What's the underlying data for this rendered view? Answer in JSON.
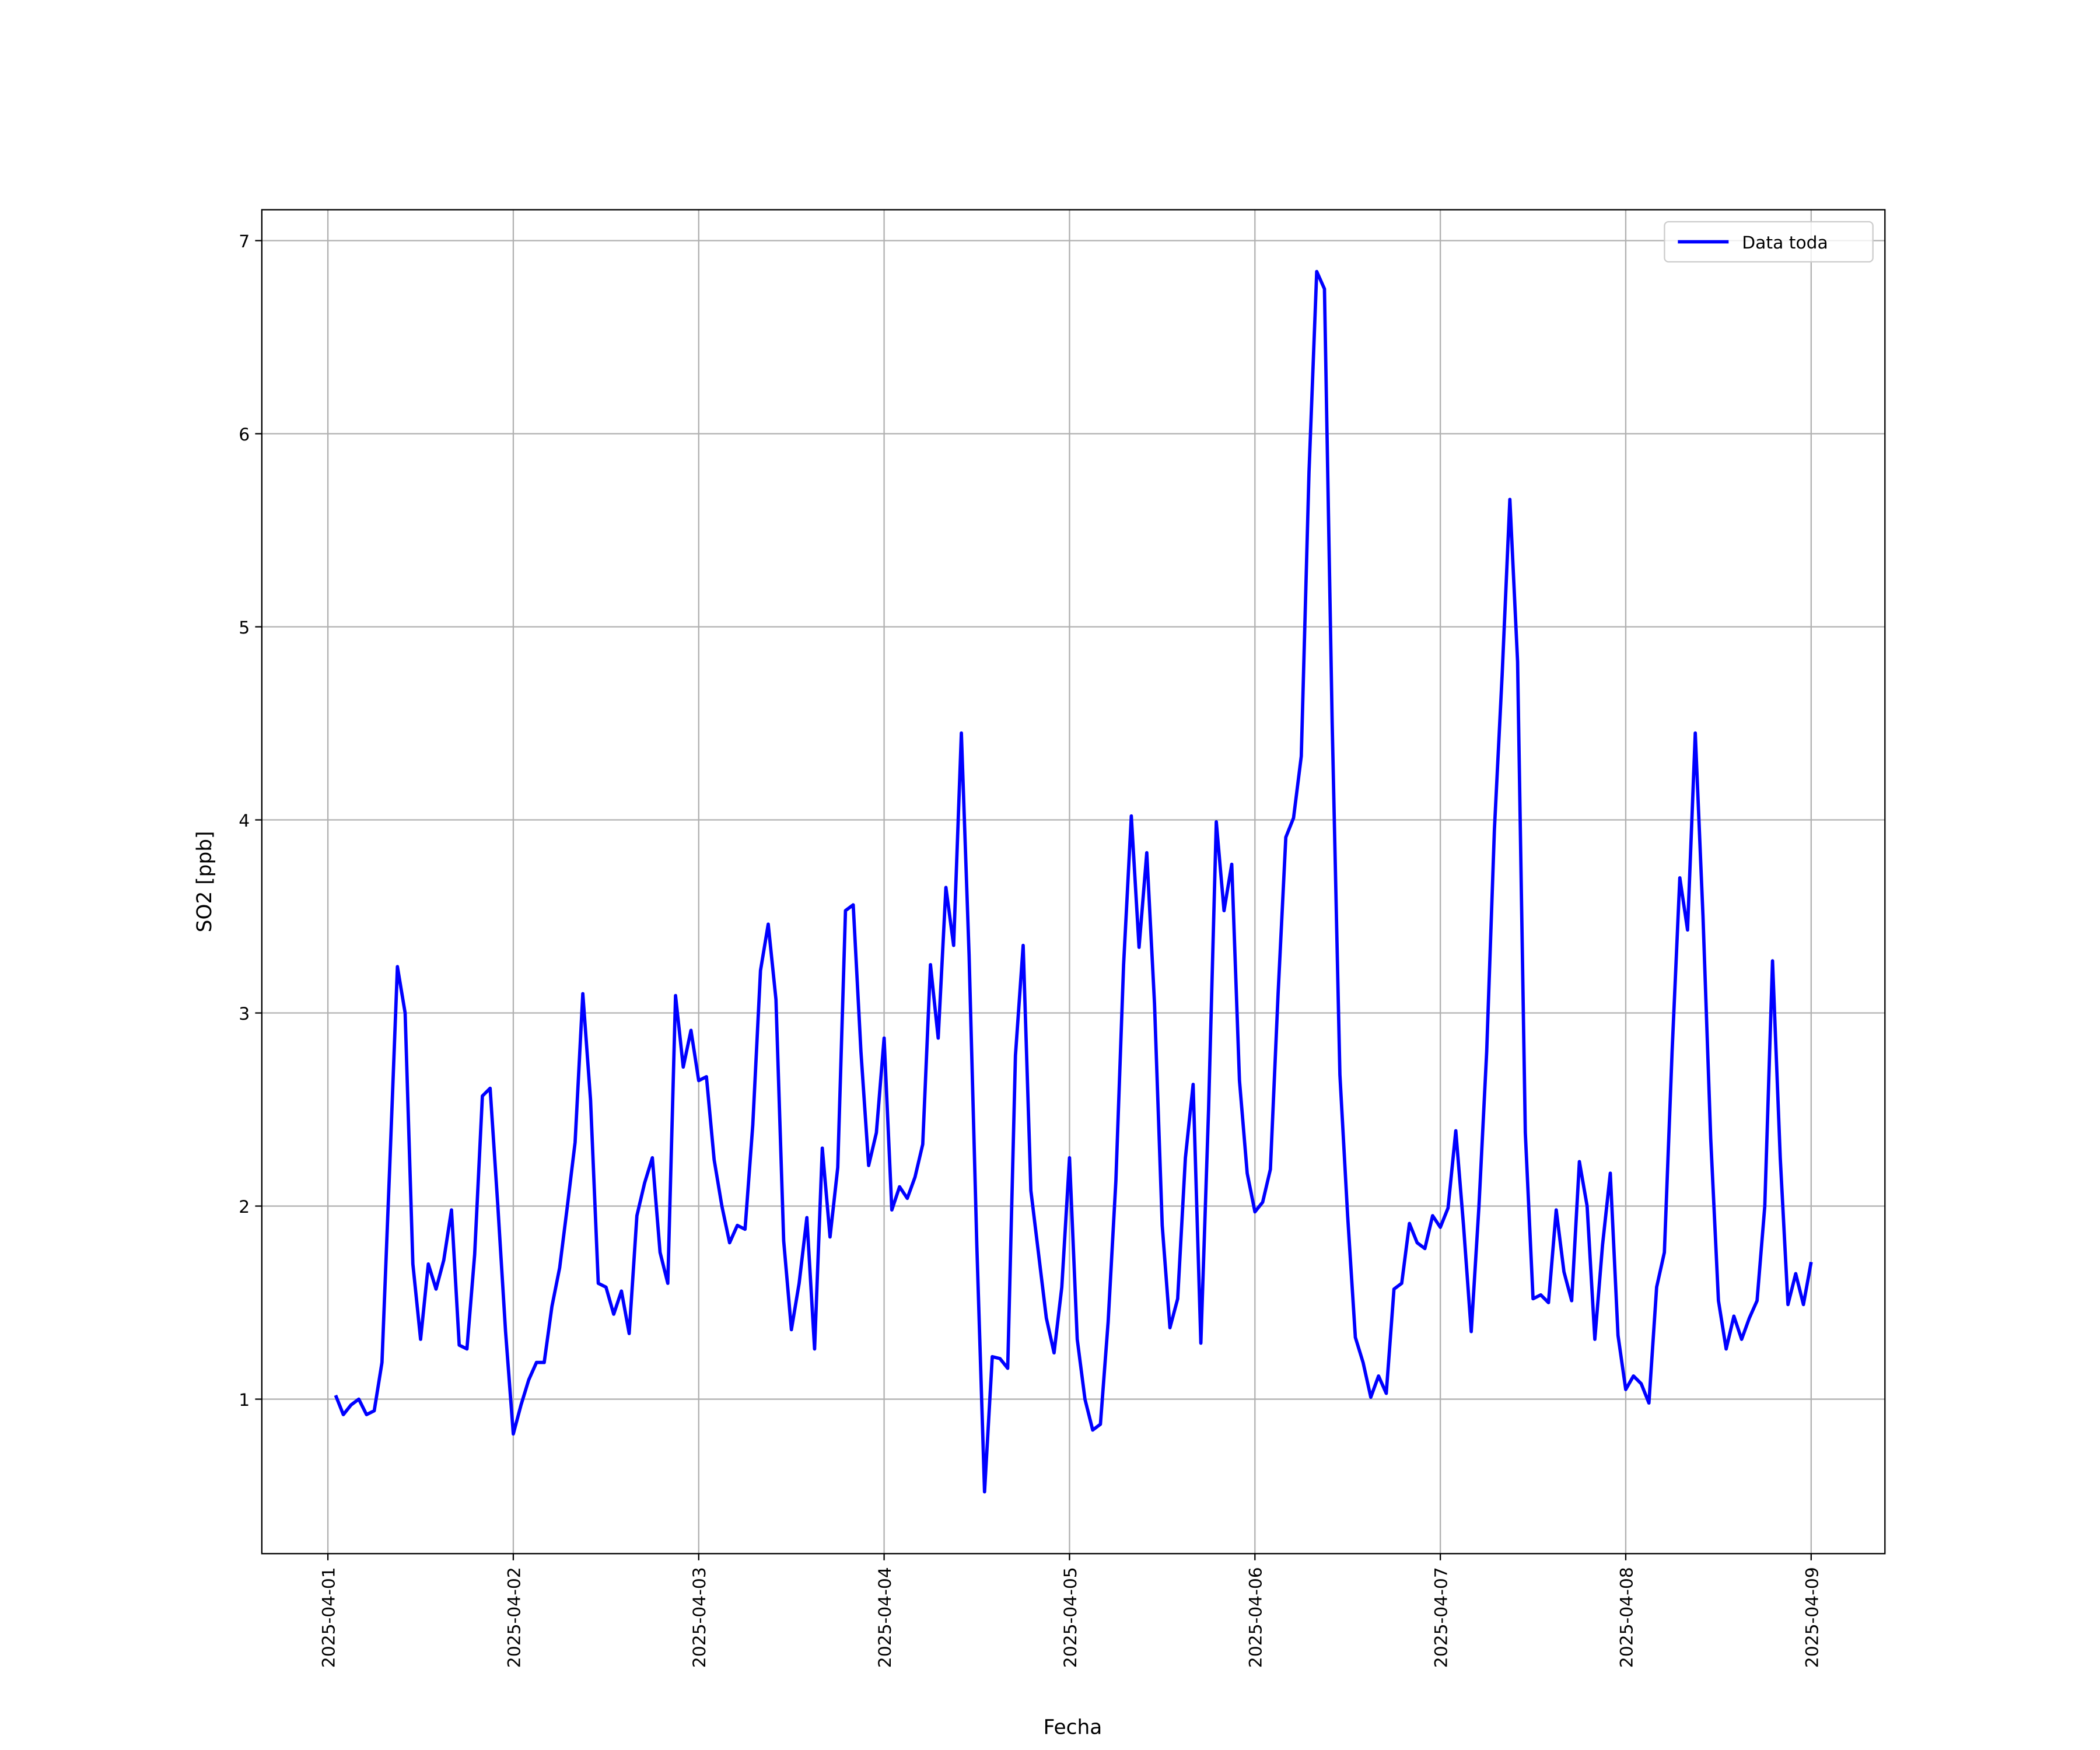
{
  "chart_data": {
    "type": "line",
    "xlabel": "Fecha",
    "ylabel": "SO2 [ppb]",
    "grid": true,
    "legend": "upper right",
    "xlim": [
      "2025-03-31 15:27",
      "2025-04-09 09:33"
    ],
    "xticks": [
      "2025-04-01",
      "2025-04-02",
      "2025-04-03",
      "2025-04-04",
      "2025-04-05",
      "2025-04-06",
      "2025-04-07",
      "2025-04-08",
      "2025-04-09"
    ],
    "ylim": [
      0.2,
      7.16
    ],
    "yticks": [
      1,
      2,
      3,
      4,
      5,
      6,
      7
    ],
    "x": [
      "2025-04-01 01:00",
      "2025-04-01 02:00",
      "2025-04-01 03:00",
      "2025-04-01 04:00",
      "2025-04-01 05:00",
      "2025-04-01 06:00",
      "2025-04-01 07:00",
      "2025-04-01 08:00",
      "2025-04-01 09:00",
      "2025-04-01 10:00",
      "2025-04-01 11:00",
      "2025-04-01 12:00",
      "2025-04-01 13:00",
      "2025-04-01 14:00",
      "2025-04-01 15:00",
      "2025-04-01 16:00",
      "2025-04-01 17:00",
      "2025-04-01 18:00",
      "2025-04-01 19:00",
      "2025-04-01 20:00",
      "2025-04-01 21:00",
      "2025-04-01 22:00",
      "2025-04-01 23:00",
      "2025-04-02 00:00",
      "2025-04-02 01:00",
      "2025-04-02 02:00",
      "2025-04-02 03:00",
      "2025-04-02 04:00",
      "2025-04-02 05:00",
      "2025-04-02 06:00",
      "2025-04-02 07:00",
      "2025-04-02 08:00",
      "2025-04-02 09:00",
      "2025-04-02 10:00",
      "2025-04-02 11:00",
      "2025-04-02 12:00",
      "2025-04-02 13:00",
      "2025-04-02 14:00",
      "2025-04-02 15:00",
      "2025-04-02 16:00",
      "2025-04-02 17:00",
      "2025-04-02 18:00",
      "2025-04-02 19:00",
      "2025-04-02 20:00",
      "2025-04-02 21:00",
      "2025-04-02 22:00",
      "2025-04-02 23:00",
      "2025-04-03 00:00",
      "2025-04-03 01:00",
      "2025-04-03 02:00",
      "2025-04-03 03:00",
      "2025-04-03 04:00",
      "2025-04-03 05:00",
      "2025-04-03 06:00",
      "2025-04-03 07:00",
      "2025-04-03 08:00",
      "2025-04-03 09:00",
      "2025-04-03 10:00",
      "2025-04-03 11:00",
      "2025-04-03 12:00",
      "2025-04-03 13:00",
      "2025-04-03 14:00",
      "2025-04-03 15:00",
      "2025-04-03 16:00",
      "2025-04-03 17:00",
      "2025-04-03 18:00",
      "2025-04-03 19:00",
      "2025-04-03 20:00",
      "2025-04-03 21:00",
      "2025-04-03 22:00",
      "2025-04-03 23:00",
      "2025-04-04 00:00",
      "2025-04-04 01:00",
      "2025-04-04 02:00",
      "2025-04-04 03:00",
      "2025-04-04 04:00",
      "2025-04-04 05:00",
      "2025-04-04 06:00",
      "2025-04-04 07:00",
      "2025-04-04 08:00",
      "2025-04-04 09:00",
      "2025-04-04 10:00",
      "2025-04-04 11:00",
      "2025-04-04 12:00",
      "2025-04-04 13:00",
      "2025-04-04 14:00",
      "2025-04-04 15:00",
      "2025-04-04 16:00",
      "2025-04-04 17:00",
      "2025-04-04 18:00",
      "2025-04-04 19:00",
      "2025-04-04 20:00",
      "2025-04-04 21:00",
      "2025-04-04 22:00",
      "2025-04-04 23:00",
      "2025-04-05 00:00",
      "2025-04-05 01:00",
      "2025-04-05 02:00",
      "2025-04-05 03:00",
      "2025-04-05 04:00",
      "2025-04-05 05:00",
      "2025-04-05 06:00",
      "2025-04-05 07:00",
      "2025-04-05 08:00",
      "2025-04-05 09:00",
      "2025-04-05 10:00",
      "2025-04-05 11:00",
      "2025-04-05 12:00",
      "2025-04-05 13:00",
      "2025-04-05 14:00",
      "2025-04-05 15:00",
      "2025-04-05 16:00",
      "2025-04-05 17:00",
      "2025-04-05 18:00",
      "2025-04-05 19:00",
      "2025-04-05 20:00",
      "2025-04-05 21:00",
      "2025-04-05 22:00",
      "2025-04-05 23:00",
      "2025-04-06 00:00",
      "2025-04-06 01:00",
      "2025-04-06 02:00",
      "2025-04-06 03:00",
      "2025-04-06 04:00",
      "2025-04-06 05:00",
      "2025-04-06 06:00",
      "2025-04-06 07:00",
      "2025-04-06 08:00",
      "2025-04-06 09:00",
      "2025-04-06 10:00",
      "2025-04-06 11:00",
      "2025-04-06 12:00",
      "2025-04-06 13:00",
      "2025-04-06 14:00",
      "2025-04-06 15:00",
      "2025-04-06 16:00",
      "2025-04-06 17:00",
      "2025-04-06 18:00",
      "2025-04-06 19:00",
      "2025-04-06 20:00",
      "2025-04-06 21:00",
      "2025-04-06 22:00",
      "2025-04-06 23:00",
      "2025-04-07 00:00",
      "2025-04-07 01:00",
      "2025-04-07 02:00",
      "2025-04-07 03:00",
      "2025-04-07 04:00",
      "2025-04-07 05:00",
      "2025-04-07 06:00",
      "2025-04-07 07:00",
      "2025-04-07 08:00",
      "2025-04-07 09:00",
      "2025-04-07 10:00",
      "2025-04-07 11:00",
      "2025-04-07 12:00",
      "2025-04-07 13:00",
      "2025-04-07 14:00",
      "2025-04-07 15:00",
      "2025-04-07 16:00",
      "2025-04-07 17:00",
      "2025-04-07 18:00",
      "2025-04-07 19:00",
      "2025-04-07 20:00",
      "2025-04-07 21:00",
      "2025-04-07 22:00",
      "2025-04-07 23:00",
      "2025-04-08 00:00",
      "2025-04-08 01:00",
      "2025-04-08 02:00",
      "2025-04-08 03:00",
      "2025-04-08 04:00",
      "2025-04-08 05:00",
      "2025-04-08 06:00",
      "2025-04-08 07:00",
      "2025-04-08 08:00",
      "2025-04-08 09:00",
      "2025-04-08 10:00",
      "2025-04-08 11:00",
      "2025-04-08 12:00",
      "2025-04-08 13:00",
      "2025-04-08 14:00",
      "2025-04-08 15:00",
      "2025-04-08 16:00",
      "2025-04-08 17:00",
      "2025-04-08 18:00",
      "2025-04-08 19:00",
      "2025-04-08 20:00",
      "2025-04-08 21:00",
      "2025-04-08 22:00",
      "2025-04-08 23:00",
      "2025-04-09 00:00"
    ],
    "series": [
      {
        "name": "Data toda",
        "color": "#0000ff",
        "values": [
          1.02,
          0.92,
          0.97,
          1.0,
          0.92,
          0.94,
          1.19,
          2.2,
          3.24,
          3.0,
          1.7,
          1.31,
          1.7,
          1.57,
          1.72,
          1.98,
          1.28,
          1.26,
          1.75,
          2.57,
          2.61,
          2.0,
          1.35,
          0.82,
          0.97,
          1.1,
          1.19,
          1.19,
          1.48,
          1.68,
          2.0,
          2.33,
          3.1,
          2.55,
          1.6,
          1.58,
          1.44,
          1.56,
          1.34,
          1.95,
          2.12,
          2.25,
          1.76,
          1.6,
          3.09,
          2.72,
          2.91,
          2.65,
          2.67,
          2.24,
          2.0,
          1.81,
          1.9,
          1.88,
          2.42,
          3.22,
          3.46,
          3.07,
          1.82,
          1.36,
          1.6,
          1.94,
          1.26,
          2.3,
          1.84,
          2.2,
          3.53,
          3.56,
          2.8,
          2.21,
          2.38,
          2.87,
          1.98,
          2.1,
          2.04,
          2.15,
          2.32,
          3.25,
          2.87,
          3.65,
          3.35,
          4.45,
          3.3,
          1.8,
          0.52,
          1.22,
          1.21,
          1.16,
          2.78,
          3.35,
          2.08,
          1.75,
          1.42,
          1.24,
          1.58,
          2.25,
          1.31,
          1.0,
          0.84,
          0.87,
          1.4,
          2.13,
          3.25,
          4.02,
          3.34,
          3.83,
          3.05,
          1.9,
          1.37,
          1.52,
          2.25,
          2.63,
          1.29,
          2.5,
          3.99,
          3.53,
          3.77,
          2.65,
          2.17,
          1.97,
          2.02,
          2.19,
          3.1,
          3.91,
          4.01,
          4.33,
          5.8,
          6.84,
          6.75,
          4.5,
          2.68,
          1.95,
          1.32,
          1.19,
          1.01,
          1.12,
          1.03,
          1.57,
          1.6,
          1.91,
          1.81,
          1.78,
          1.95,
          1.89,
          1.99,
          2.39,
          1.9,
          1.35,
          2.0,
          2.8,
          3.95,
          4.75,
          5.66,
          4.82,
          2.38,
          1.52,
          1.54,
          1.5,
          1.98,
          1.66,
          1.51,
          2.23,
          2.0,
          1.31,
          1.8,
          2.17,
          1.33,
          1.05,
          1.12,
          1.08,
          0.98,
          1.58,
          1.76,
          2.8,
          3.7,
          3.43,
          4.45,
          3.5,
          2.35,
          1.51,
          1.26,
          1.43,
          1.31,
          1.42,
          1.51,
          2.0,
          3.27,
          2.25,
          1.49,
          1.65,
          1.49,
          1.71
        ]
      }
    ]
  }
}
